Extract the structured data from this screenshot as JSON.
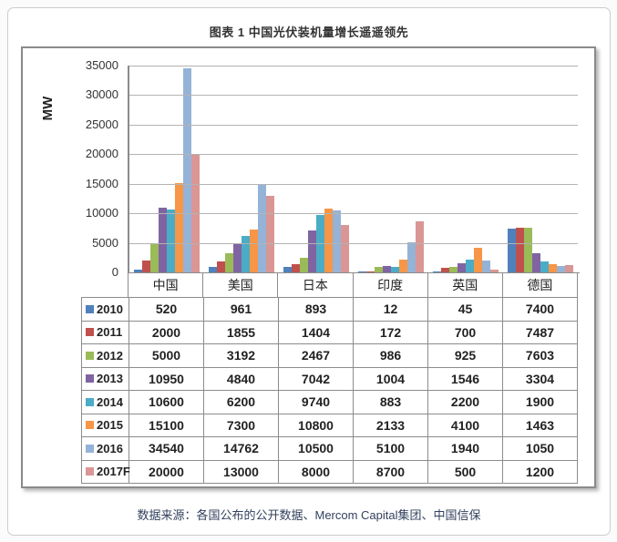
{
  "page": {
    "title": "图表 1 中国光伏装机量增长遥遥领先",
    "source": "数据来源：各国公布的公开数据、Mercom Capital集团、中国信保"
  },
  "chart_data": {
    "type": "bar",
    "title": "图表 1 中国光伏装机量增长遥遥领先",
    "xlabel": "",
    "ylabel": "MW",
    "ylim": [
      0,
      35000
    ],
    "yticks": [
      0,
      5000,
      10000,
      15000,
      20000,
      25000,
      30000,
      35000
    ],
    "grid": true,
    "legend_position": "data-table-below-chart",
    "categories": [
      "中国",
      "美国",
      "日本",
      "印度",
      "英国",
      "德国"
    ],
    "series": [
      {
        "name": "2010",
        "color": "#4F81BD",
        "values": [
          520,
          961,
          893,
          12,
          45,
          7400
        ]
      },
      {
        "name": "2011",
        "color": "#C0504D",
        "values": [
          2000,
          1855,
          1404,
          172,
          700,
          7487
        ]
      },
      {
        "name": "2012",
        "color": "#9BBB59",
        "values": [
          5000,
          3192,
          2467,
          986,
          925,
          7603
        ]
      },
      {
        "name": "2013",
        "color": "#8064A2",
        "values": [
          10950,
          4840,
          7042,
          1004,
          1546,
          3304
        ]
      },
      {
        "name": "2014",
        "color": "#4BACC6",
        "values": [
          10600,
          6200,
          9740,
          883,
          2200,
          1900
        ]
      },
      {
        "name": "2015",
        "color": "#F79646",
        "values": [
          15100,
          7300,
          10800,
          2133,
          4100,
          1463
        ]
      },
      {
        "name": "2016",
        "color": "#95B3D7",
        "values": [
          34540,
          14762,
          10500,
          5100,
          1940,
          1050
        ]
      },
      {
        "name": "2017F",
        "color": "#D99694",
        "values": [
          20000,
          13000,
          8000,
          8700,
          500,
          1200
        ]
      }
    ],
    "colors": {
      "axis": "#8c8c8c",
      "gridline": "#b3b3b3",
      "title_text": "#333333",
      "source_text": "#33415e"
    }
  }
}
